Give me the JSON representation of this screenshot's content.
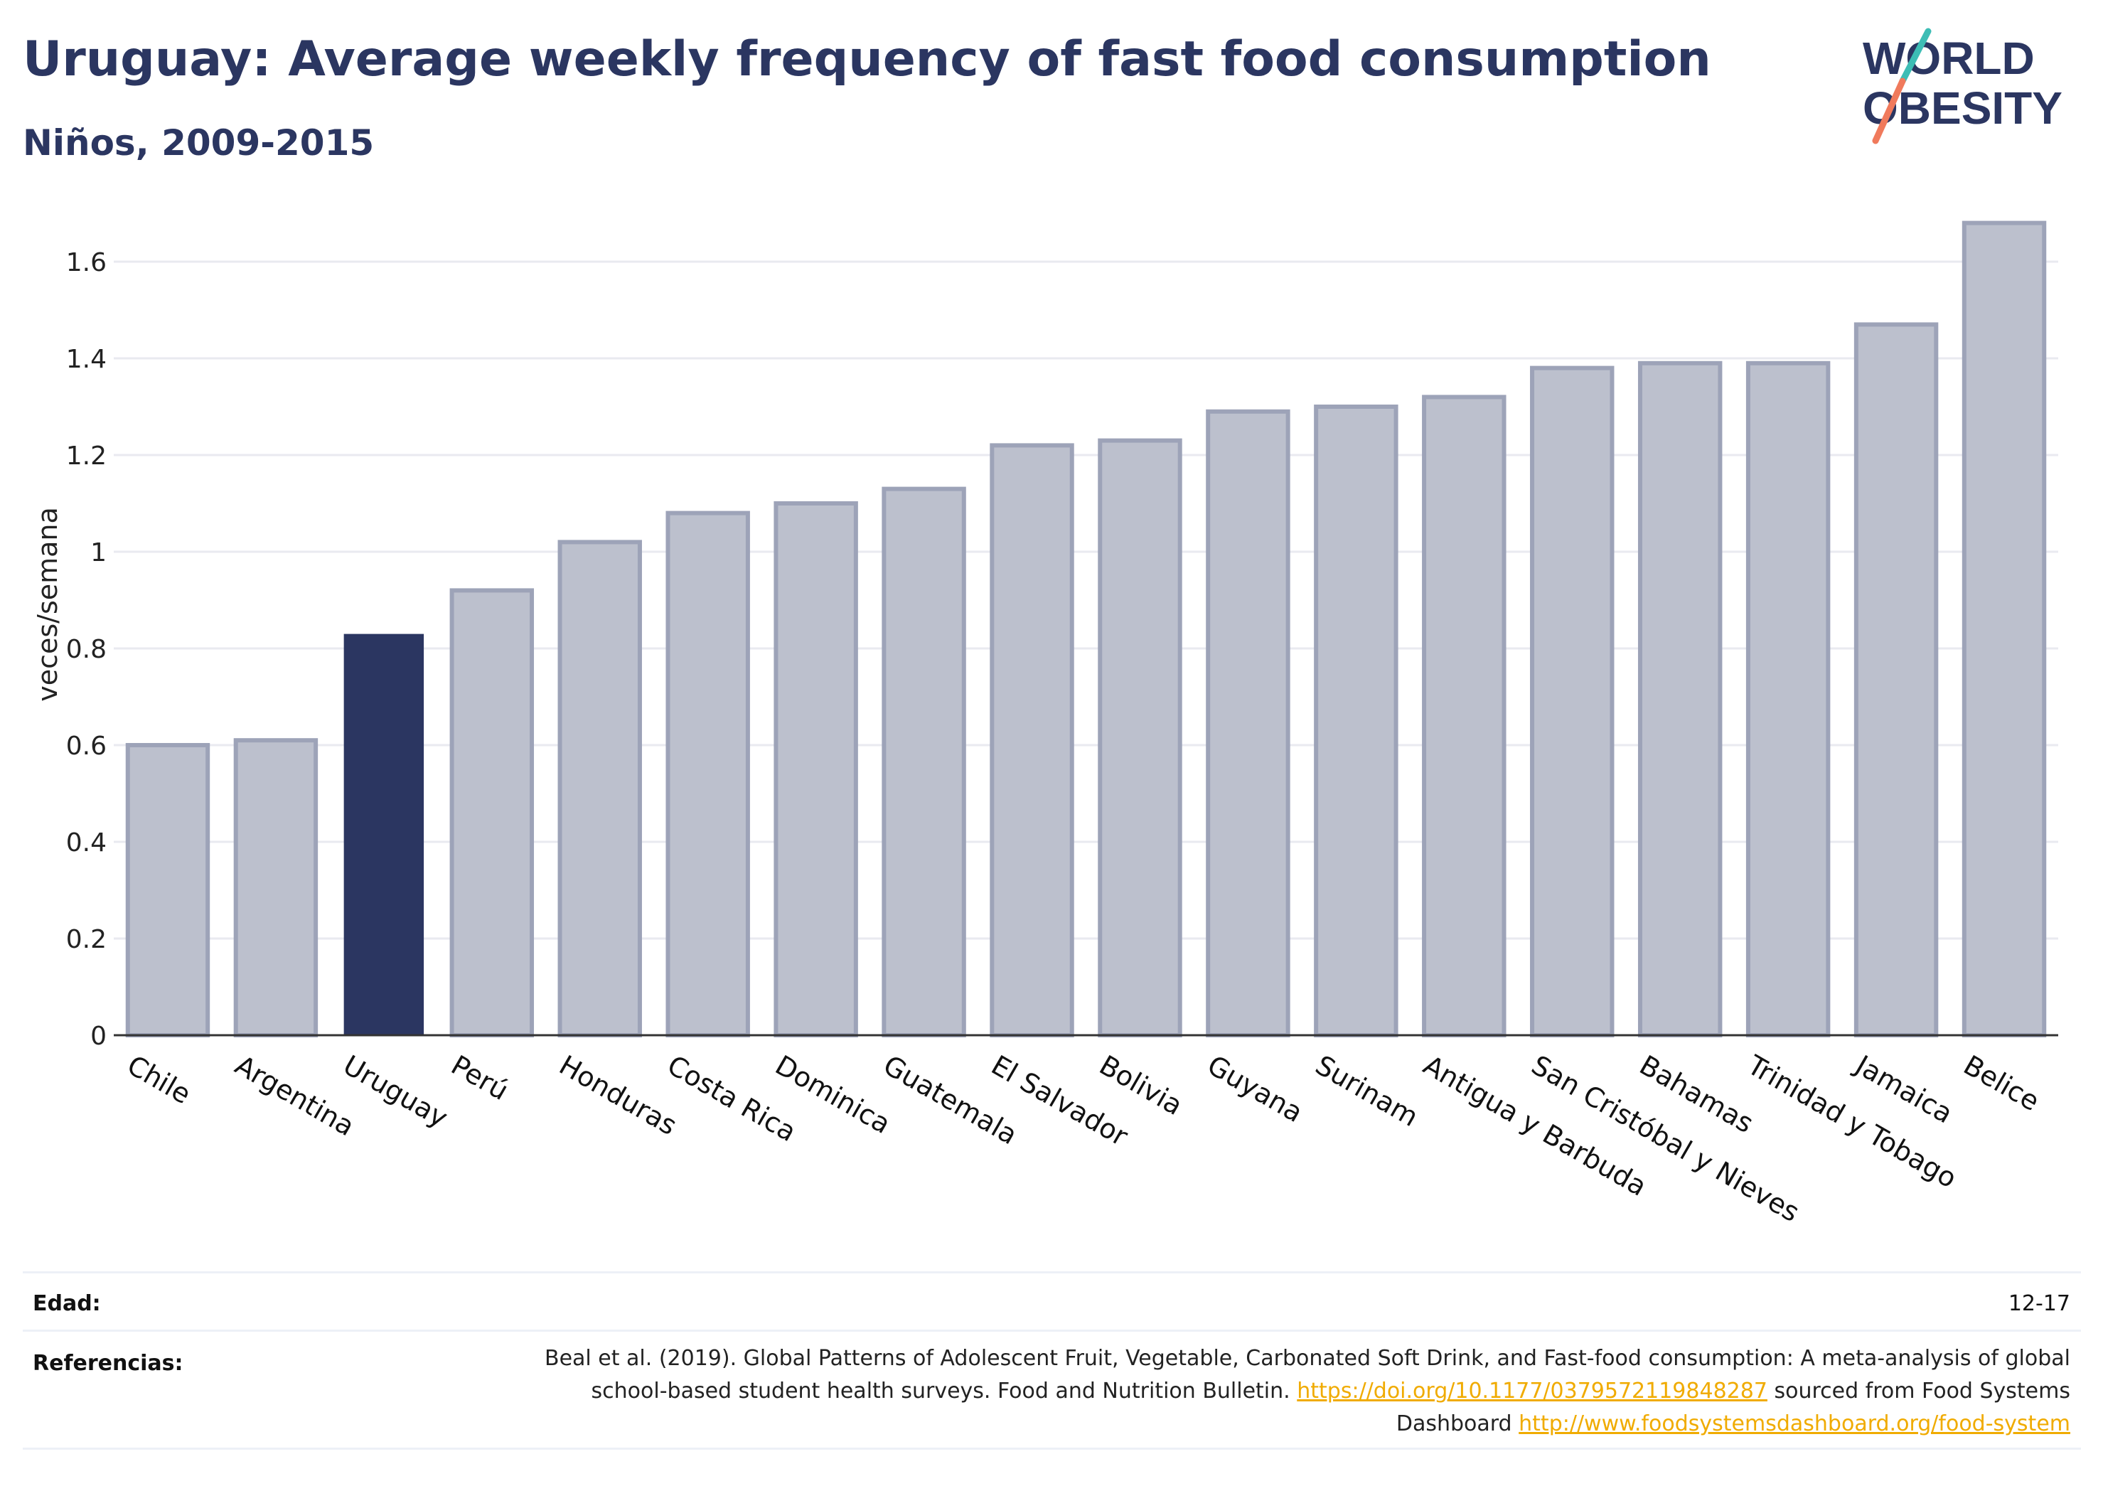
{
  "header": {
    "title": "Uruguay: Average weekly frequency of fast food consumption",
    "subtitle": "Niños, 2009-2015"
  },
  "logo": {
    "line1": "WORLD",
    "line2": "OBESITY",
    "colors": {
      "text": "#2b3661",
      "slash_teal": "#3dbdb5",
      "slash_coral": "#f07a5c"
    }
  },
  "chart_data": {
    "type": "bar",
    "categories": [
      "Chile",
      "Argentina",
      "Uruguay",
      "Perú",
      "Honduras",
      "Costa Rica",
      "Dominica",
      "Guatemala",
      "El Salvador",
      "Bolivia",
      "Guyana",
      "Surinam",
      "Antigua y Barbuda",
      "San Cristóbal y Nieves",
      "Bahamas",
      "Trinidad y Tobago",
      "Jamaica",
      "Belice"
    ],
    "values": [
      0.6,
      0.61,
      0.83,
      0.92,
      1.02,
      1.08,
      1.1,
      1.13,
      1.22,
      1.23,
      1.29,
      1.3,
      1.32,
      1.38,
      1.39,
      1.39,
      1.47,
      1.68
    ],
    "highlight": "Uruguay",
    "ylabel": "veces/semana",
    "xlabel": "",
    "ylim": [
      0,
      1.7
    ],
    "yticks": [
      0,
      0.2,
      0.4,
      0.6,
      0.8,
      1,
      1.2,
      1.4,
      1.6
    ],
    "ytick_labels": [
      "0",
      "0.2",
      "0.4",
      "0.6",
      "0.8",
      "1",
      "1.2",
      "1.4",
      "1.6"
    ],
    "grid": true,
    "colors": {
      "bar": "#bcc0cd",
      "bar_border": "#9da3b8",
      "highlight": "#2b3661",
      "grid": "#e9eaf0",
      "axis": "#333333"
    }
  },
  "footer": {
    "age_label": "Edad:",
    "age_value": "12-17",
    "ref_label": "Referencias:",
    "ref_text_1": "Beal et al. (2019). Global Patterns of Adolescent Fruit, Vegetable, Carbonated Soft Drink, and Fast-food consumption: A meta-analysis of global school-based student health surveys. Food and Nutrition Bulletin.",
    "ref_link_1": "https://doi.org/10.1177/0379572119848287",
    "ref_text_2": "sourced from Food Systems Dashboard",
    "ref_link_2": "http://www.foodsystemsdashboard.org/food-system"
  }
}
